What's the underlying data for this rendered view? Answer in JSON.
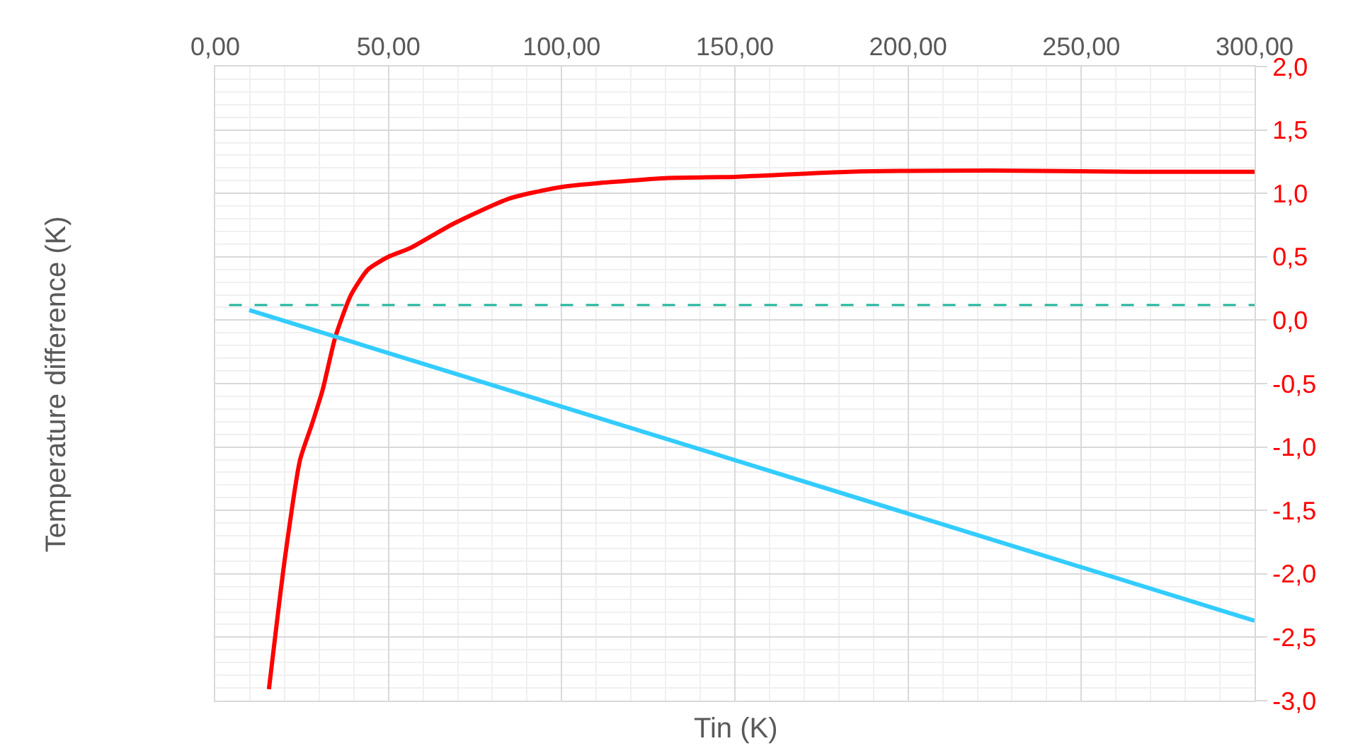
{
  "chart_data": {
    "type": "line",
    "xlabel": "Tin (K)",
    "ylabel": "Temperature difference (K)",
    "xlim": [
      0,
      300
    ],
    "xticks": [
      {
        "value": 0,
        "label": "0,00"
      },
      {
        "value": 50,
        "label": "50,00"
      },
      {
        "value": 100,
        "label": "100,00"
      },
      {
        "value": 150,
        "label": "150,00"
      },
      {
        "value": 200,
        "label": "200,00"
      },
      {
        "value": 250,
        "label": "250,00"
      },
      {
        "value": 300,
        "label": "300,00"
      }
    ],
    "ylim": [
      -3,
      2
    ],
    "yticks": [
      {
        "value": 2,
        "label": "2,0"
      },
      {
        "value": 1.5,
        "label": "1,5"
      },
      {
        "value": 1,
        "label": "1,0"
      },
      {
        "value": 0.5,
        "label": "0,5"
      },
      {
        "value": 0,
        "label": "0,0"
      },
      {
        "value": -0.5,
        "label": "-0,5"
      },
      {
        "value": -1,
        "label": "-1,0"
      },
      {
        "value": -1.5,
        "label": "-1,5"
      },
      {
        "value": -2,
        "label": "-2,0"
      },
      {
        "value": -2.5,
        "label": "-2,5"
      },
      {
        "value": -3,
        "label": "-3,0"
      }
    ],
    "grid": true,
    "marker": "none",
    "series": [
      {
        "color": "#ff0000",
        "line_style": "solid",
        "x": [
          15.5,
          20,
          24.5,
          27.8,
          31,
          34.7,
          39.2,
          44.1,
          50,
          56.4,
          68.7,
          85,
          100,
          130,
          150,
          183,
          224,
          265,
          300
        ],
        "values": [
          -2.91,
          -1.9,
          -1.1,
          -0.83,
          -0.55,
          -0.13,
          0.2,
          0.4,
          0.5,
          0.57,
          0.76,
          0.96,
          1.05,
          1.12,
          1.13,
          1.17,
          1.18,
          1.17,
          1.17
        ]
      },
      {
        "color": "#20b49c",
        "line_style": "dashed",
        "x": [
          4,
          300
        ],
        "values": [
          0.12,
          0.12
        ]
      },
      {
        "color": "#33ccff",
        "line_style": "solid",
        "x": [
          9.8,
          300
        ],
        "values": [
          0.08,
          -2.37
        ]
      }
    ]
  }
}
